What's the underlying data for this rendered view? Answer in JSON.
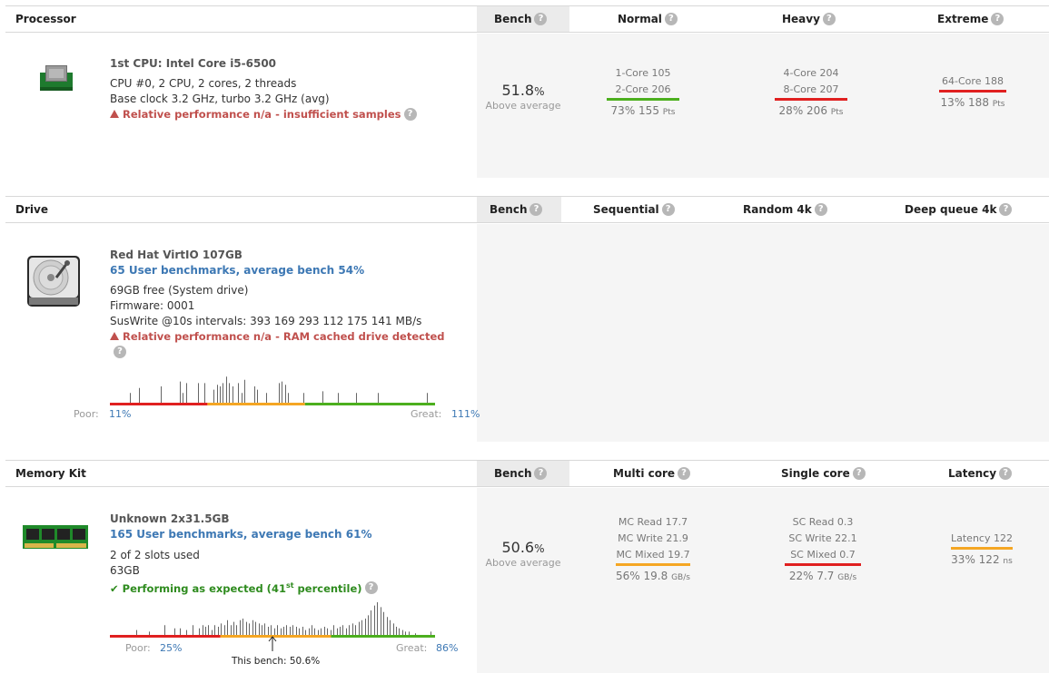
{
  "colors": {
    "red": "#e02020",
    "orange": "#f5a623",
    "green": "#4caf1e",
    "link": "#3d78b4",
    "warn": "#c0504d",
    "ok": "#2e8b1e"
  },
  "processor": {
    "header": {
      "title": "Processor",
      "bench": "Bench",
      "c1": "Normal",
      "c2": "Heavy",
      "c3": "Extreme"
    },
    "icon": "cpu-chip-icon",
    "name": "1st CPU: Intel Core i5-6500",
    "line1": "CPU #0, 2 CPU, 2 cores, 2 threads",
    "line2": "Base clock 3.2 GHz, turbo 3.2 GHz (avg)",
    "warning": "Relative performance n/a - insufficient samples",
    "bench_value": "51.8",
    "bench_unit": "%",
    "bench_label": "Above average",
    "normal": {
      "l1": "1-Core 105",
      "l2": "2-Core 206",
      "pct": "73%",
      "val": "155",
      "unit": "Pts",
      "color": "#4caf1e"
    },
    "heavy": {
      "l1": "4-Core 204",
      "l2": "8-Core 207",
      "pct": "28%",
      "val": "206",
      "unit": "Pts",
      "color": "#e02020"
    },
    "extreme": {
      "l1": "64-Core 188",
      "pct": "13%",
      "val": "188",
      "unit": "Pts",
      "color": "#e02020"
    }
  },
  "drive": {
    "header": {
      "title": "Drive",
      "bench": "Bench",
      "c1": "Sequential",
      "c2": "Random 4k",
      "c3": "Deep queue 4k"
    },
    "icon": "hard-drive-icon",
    "name": "Red Hat VirtIO 107GB",
    "link": "65 User benchmarks, average bench 54%",
    "line1": "69GB free (System drive)",
    "line2": "Firmware: 0001",
    "line3": "SusWrite @10s intervals: 393 169 293 112 175 141 MB/s",
    "warning": "Relative performance n/a - RAM cached drive detected",
    "poor_label": "Poor:",
    "poor_value": "11%",
    "great_label": "Great:",
    "great_value": "111%",
    "histogram": [
      0,
      0,
      0,
      0,
      0,
      0,
      0.3,
      0,
      0,
      0.45,
      0,
      0,
      0,
      0,
      0,
      0,
      0.5,
      0,
      0,
      0,
      0,
      0,
      0.65,
      0.3,
      0.6,
      0,
      0,
      0,
      0.6,
      0,
      0.6,
      0,
      0,
      0.4,
      0.55,
      0.5,
      0.6,
      0.8,
      0.6,
      0.5,
      0,
      0.6,
      0.3,
      0.7,
      0,
      0,
      0.5,
      0.4,
      0,
      0,
      0.3,
      0,
      0,
      0,
      0.6,
      0.65,
      0.55,
      0.3,
      0,
      0,
      0,
      0,
      0.3,
      0,
      0,
      0,
      0,
      0,
      0.35,
      0,
      0,
      0,
      0,
      0.3,
      0,
      0,
      0,
      0,
      0,
      0.3,
      0,
      0,
      0,
      0,
      0,
      0,
      0.3,
      0,
      0,
      0,
      0,
      0,
      0,
      0,
      0,
      0,
      0,
      0,
      0,
      0,
      0,
      0,
      0.3,
      0,
      0
    ]
  },
  "memory": {
    "header": {
      "title": "Memory Kit",
      "bench": "Bench",
      "c1": "Multi core",
      "c2": "Single core",
      "c3": "Latency"
    },
    "icon": "ram-module-icon",
    "name": "Unknown 2x31.5GB",
    "link": "165 User benchmarks, average bench 61%",
    "line1": "2 of 2 slots used",
    "line2": "63GB",
    "status_pre": "Performing as expected (41",
    "status_sup": "st",
    "status_post": " percentile)",
    "bench_value": "50.6",
    "bench_unit": "%",
    "bench_label": "Above average",
    "multi": {
      "l1": "MC Read 17.7",
      "l2": "MC Write 21.9",
      "l3": "MC Mixed 19.7",
      "pct": "56%",
      "val": "19.8",
      "unit": "GB/s",
      "color": "#f5a623"
    },
    "single": {
      "l1": "SC Read 0.3",
      "l2": "SC Write 22.1",
      "l3": "SC Mixed 0.7",
      "pct": "22%",
      "val": "7.7",
      "unit": "GB/s",
      "color": "#e02020"
    },
    "latency": {
      "l1": "Latency 122",
      "pct": "33%",
      "val": "122",
      "unit": "ns",
      "color": "#f5a623"
    },
    "poor_label": "Poor:",
    "poor_value": "25%",
    "great_label": "Great:",
    "great_value": "86%",
    "this_bench": "This bench: 50.6%",
    "this_bench_position": 0.5,
    "histogram": [
      0,
      0,
      0,
      0,
      0,
      0,
      0,
      0,
      0.15,
      0,
      0,
      0,
      0.1,
      0,
      0,
      0,
      0,
      0.3,
      0,
      0,
      0.2,
      0,
      0.2,
      0,
      0.15,
      0,
      0.3,
      0,
      0.2,
      0.3,
      0.25,
      0.3,
      0.15,
      0.3,
      0.25,
      0.35,
      0.3,
      0.45,
      0.3,
      0.4,
      0.3,
      0.45,
      0.5,
      0.4,
      0.35,
      0.45,
      0.4,
      0.35,
      0.3,
      0.35,
      0.25,
      0.3,
      0.2,
      0.3,
      0.2,
      0.25,
      0.3,
      0.25,
      0.3,
      0.25,
      0.2,
      0.25,
      0.15,
      0.2,
      0.3,
      0.2,
      0.15,
      0.2,
      0.25,
      0.2,
      0.15,
      0.3,
      0.2,
      0.25,
      0.3,
      0.2,
      0.3,
      0.35,
      0.3,
      0.4,
      0.45,
      0.5,
      0.6,
      0.75,
      0.9,
      1.0,
      0.85,
      0.7,
      0.55,
      0.45,
      0.35,
      0.25,
      0.2,
      0.15,
      0.1,
      0.1,
      0,
      0.05,
      0,
      0,
      0,
      0,
      0.1,
      0
    ]
  },
  "help_glyph": "?"
}
